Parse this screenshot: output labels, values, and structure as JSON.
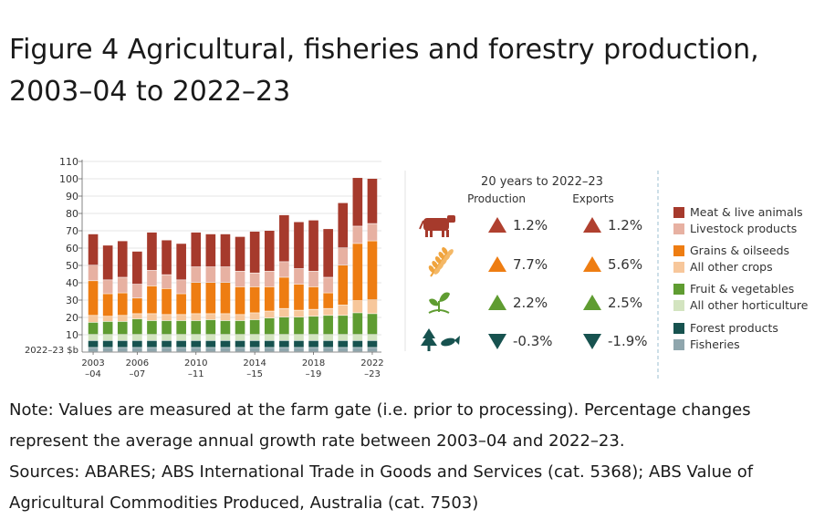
{
  "title_line1": "Figure 4 Agricultural, fisheries and forestry production,",
  "title_line2": "2003–04 to 2022–23",
  "colors": {
    "meat": "#a63a2c",
    "livestock_products": "#e7b1a2",
    "grains": "#ee7d12",
    "other_crops": "#f7c79b",
    "fruit_veg": "#5f9c31",
    "other_horticulture": "#d3e4c0",
    "forest": "#17524f",
    "fisheries": "#8fa6ad",
    "up_red": "#b0402f",
    "up_orange": "#ee7d12",
    "up_green": "#5f9c31",
    "down_teal": "#17524f"
  },
  "chart_data": {
    "type": "bar",
    "stacked": true,
    "unit_label": "2022–23 $b",
    "ylim": [
      0,
      110
    ],
    "yticks": [
      "110",
      "100",
      "90",
      "80",
      "70",
      "60",
      "50",
      "40",
      "30",
      "20",
      "10"
    ],
    "ytick_values": [
      110,
      100,
      90,
      80,
      70,
      60,
      50,
      40,
      30,
      20,
      10
    ],
    "xtick_labels": [
      {
        "index": 0,
        "line1": "2003",
        "line2": "–04"
      },
      {
        "index": 3,
        "line1": "2006",
        "line2": "–07"
      },
      {
        "index": 7,
        "line1": "2010",
        "line2": "–11"
      },
      {
        "index": 11,
        "line1": "2014",
        "line2": "–15"
      },
      {
        "index": 15,
        "line1": "2018",
        "line2": "–19"
      },
      {
        "index": 19,
        "line1": "2022",
        "line2": "–23"
      }
    ],
    "categories": [
      "2003–04",
      "2004–05",
      "2005–06",
      "2006–07",
      "2007–08",
      "2008–09",
      "2009–10",
      "2010–11",
      "2011–12",
      "2012–13",
      "2013–14",
      "2014–15",
      "2015–16",
      "2016–17",
      "2017–18",
      "2018–19",
      "2019–20",
      "2020–21",
      "2021–22",
      "2022–23"
    ],
    "series": [
      {
        "name": "Fisheries",
        "color_key": "fisheries",
        "values": [
          2.5,
          2.5,
          2.5,
          2.5,
          2.5,
          2.5,
          2.5,
          2.5,
          2.5,
          2.5,
          2.5,
          2.5,
          2.5,
          2.5,
          2.5,
          2.5,
          2.5,
          2.5,
          2.5,
          2.5
        ]
      },
      {
        "name": "Forest products",
        "color_key": "forest",
        "values": [
          4,
          4,
          4,
          4,
          4,
          4,
          4,
          4,
          4,
          4,
          4,
          4,
          4,
          4,
          4,
          4,
          4,
          4,
          4,
          4
        ]
      },
      {
        "name": "All other horticulture",
        "color_key": "other_horticulture",
        "values": [
          3.5,
          3.5,
          3.5,
          3.5,
          3.5,
          3.5,
          3.5,
          3.5,
          3.5,
          3.5,
          3.5,
          3.5,
          3.5,
          3.5,
          3.5,
          3.5,
          3.5,
          3.5,
          3.5,
          3.5
        ]
      },
      {
        "name": "Fruit & vegetables",
        "color_key": "fruit_veg",
        "values": [
          7,
          7.5,
          7.5,
          9,
          8,
          8,
          8,
          8,
          8.5,
          8,
          8,
          8.5,
          9.5,
          10,
          10,
          10.5,
          11,
          11,
          12.5,
          12
        ]
      },
      {
        "name": "All other crops",
        "color_key": "other_crops",
        "values": [
          4,
          3,
          3.5,
          3,
          4,
          3.5,
          3.5,
          4,
          3.5,
          4,
          3.5,
          4,
          4,
          5,
          4,
          4,
          4,
          6,
          7,
          8
        ]
      },
      {
        "name": "Grains & oilseeds",
        "color_key": "grains",
        "values": [
          20,
          13,
          13,
          9,
          16,
          15,
          12,
          18,
          18,
          18,
          16,
          15,
          14,
          18,
          15,
          13,
          9,
          23,
          33,
          34
        ]
      },
      {
        "name": "Livestock products",
        "color_key": "livestock_products",
        "values": [
          9,
          8,
          9,
          8,
          9,
          8,
          8,
          9,
          9,
          9,
          9,
          8,
          9,
          9,
          9,
          9,
          9,
          10,
          10,
          10
        ]
      },
      {
        "name": "Meat & live animals",
        "color_key": "meat",
        "values": [
          18,
          20,
          21,
          19,
          22,
          20,
          21,
          20,
          19,
          19,
          20,
          24,
          23.5,
          27,
          27,
          29.5,
          28,
          26,
          28,
          26
        ]
      }
    ]
  },
  "summary": {
    "heading": "20 years to 2022–23",
    "col_production": "Production",
    "col_exports": "Exports",
    "rows": [
      {
        "icon": "cow-icon",
        "production": "1.2%",
        "exports": "1.2%",
        "dir_prod": "up",
        "dir_exp": "up",
        "color_key": "up_red"
      },
      {
        "icon": "wheat-icon",
        "production": "7.7%",
        "exports": "5.6%",
        "dir_prod": "up",
        "dir_exp": "up",
        "color_key": "up_orange"
      },
      {
        "icon": "sprout-icon",
        "production": "2.2%",
        "exports": "2.5%",
        "dir_prod": "up",
        "dir_exp": "up",
        "color_key": "up_green"
      },
      {
        "icon": "tree-fish-icon",
        "production": "-0.3%",
        "exports": "-1.9%",
        "dir_prod": "down",
        "dir_exp": "down",
        "color_key": "down_teal"
      }
    ]
  },
  "legend": [
    {
      "label": "Meat & live animals",
      "color_key": "meat"
    },
    {
      "label": "Livestock products",
      "color_key": "livestock_products"
    },
    {
      "label": "Grains & oilseeds",
      "color_key": "grains"
    },
    {
      "label": "All other crops",
      "color_key": "other_crops"
    },
    {
      "label": "Fruit & vegetables",
      "color_key": "fruit_veg"
    },
    {
      "label": "All other horticulture",
      "color_key": "other_horticulture"
    },
    {
      "label": "Forest products",
      "color_key": "forest"
    },
    {
      "label": "Fisheries",
      "color_key": "fisheries"
    }
  ],
  "note": {
    "line1": "Note: Values are measured at the farm gate (i.e. prior to processing). Percentage changes",
    "line2": "represent the average annual growth rate between 2003–04 and 2022–23.",
    "line3": "Sources: ABARES; ABS International Trade in Goods and Services (cat. 5368); ABS Value of",
    "line4": "Agricultural Commodities Produced, Australia (cat. 7503)"
  }
}
